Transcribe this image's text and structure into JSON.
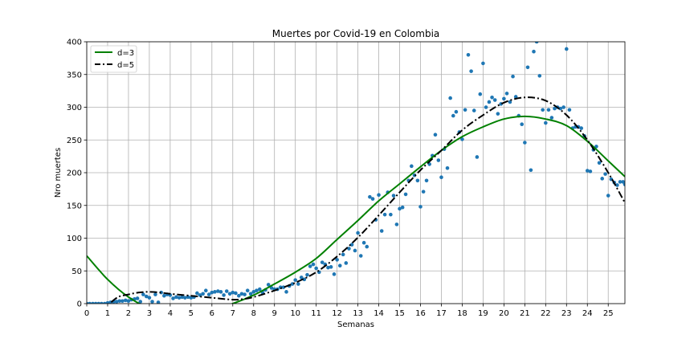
{
  "chart_data": {
    "type": "scatter",
    "title": "Muertes por Covid-19 en Colombia",
    "xlabel": "Semanas",
    "ylabel": "Nro muertes",
    "xlim": [
      0,
      25.8
    ],
    "ylim": [
      0,
      400
    ],
    "xticks": [
      0,
      1,
      2,
      3,
      4,
      5,
      6,
      7,
      8,
      9,
      10,
      11,
      12,
      13,
      14,
      15,
      16,
      17,
      18,
      19,
      20,
      21,
      22,
      23,
      24,
      25
    ],
    "yticks": [
      0,
      50,
      100,
      150,
      200,
      250,
      300,
      350,
      400
    ],
    "grid": true,
    "legend_position": "top-left",
    "scatter": {
      "color": "#1f77b4",
      "points": [
        [
          0.0,
          0
        ],
        [
          0.14,
          0
        ],
        [
          0.29,
          0
        ],
        [
          0.43,
          0
        ],
        [
          0.57,
          0
        ],
        [
          0.71,
          0
        ],
        [
          0.86,
          0
        ],
        [
          1.0,
          1
        ],
        [
          1.14,
          2
        ],
        [
          1.29,
          3
        ],
        [
          1.43,
          3
        ],
        [
          1.57,
          4
        ],
        [
          1.71,
          4
        ],
        [
          1.86,
          5
        ],
        [
          2.0,
          4
        ],
        [
          2.14,
          6
        ],
        [
          2.29,
          7
        ],
        [
          2.43,
          8
        ],
        [
          2.57,
          3
        ],
        [
          2.71,
          14
        ],
        [
          2.86,
          11
        ],
        [
          3.0,
          9
        ],
        [
          3.14,
          3
        ],
        [
          3.29,
          14
        ],
        [
          3.43,
          2
        ],
        [
          3.57,
          17
        ],
        [
          3.71,
          12
        ],
        [
          3.86,
          14
        ],
        [
          4.0,
          13
        ],
        [
          4.14,
          8
        ],
        [
          4.29,
          10
        ],
        [
          4.43,
          9
        ],
        [
          4.57,
          10
        ],
        [
          4.71,
          9
        ],
        [
          4.86,
          10
        ],
        [
          5.0,
          9
        ],
        [
          5.14,
          10
        ],
        [
          5.29,
          16
        ],
        [
          5.43,
          13
        ],
        [
          5.57,
          15
        ],
        [
          5.71,
          20
        ],
        [
          5.86,
          14
        ],
        [
          6.0,
          17
        ],
        [
          6.14,
          18
        ],
        [
          6.29,
          19
        ],
        [
          6.43,
          18
        ],
        [
          6.57,
          13
        ],
        [
          6.71,
          19
        ],
        [
          6.86,
          15
        ],
        [
          7.0,
          17
        ],
        [
          7.14,
          16
        ],
        [
          7.29,
          12
        ],
        [
          7.43,
          15
        ],
        [
          7.57,
          14
        ],
        [
          7.71,
          20
        ],
        [
          7.86,
          15
        ],
        [
          8.0,
          18
        ],
        [
          8.14,
          20
        ],
        [
          8.29,
          22
        ],
        [
          8.43,
          17
        ],
        [
          8.57,
          21
        ],
        [
          8.71,
          29
        ],
        [
          8.86,
          24
        ],
        [
          9.0,
          22
        ],
        [
          9.14,
          22
        ],
        [
          9.29,
          25
        ],
        [
          9.43,
          25
        ],
        [
          9.57,
          18
        ],
        [
          9.71,
          27
        ],
        [
          9.86,
          30
        ],
        [
          10.0,
          36
        ],
        [
          10.14,
          30
        ],
        [
          10.29,
          40
        ],
        [
          10.43,
          37
        ],
        [
          10.57,
          44
        ],
        [
          10.71,
          57
        ],
        [
          10.86,
          60
        ],
        [
          11.0,
          54
        ],
        [
          11.14,
          48
        ],
        [
          11.29,
          63
        ],
        [
          11.43,
          60
        ],
        [
          11.57,
          55
        ],
        [
          11.71,
          56
        ],
        [
          11.86,
          45
        ],
        [
          12.0,
          67
        ],
        [
          12.14,
          58
        ],
        [
          12.29,
          75
        ],
        [
          12.43,
          62
        ],
        [
          12.57,
          84
        ],
        [
          12.71,
          90
        ],
        [
          12.86,
          81
        ],
        [
          13.0,
          108
        ],
        [
          13.14,
          73
        ],
        [
          13.29,
          93
        ],
        [
          13.43,
          87
        ],
        [
          13.57,
          163
        ],
        [
          13.71,
          160
        ],
        [
          13.86,
          128
        ],
        [
          14.0,
          166
        ],
        [
          14.14,
          111
        ],
        [
          14.29,
          136
        ],
        [
          14.43,
          170
        ],
        [
          14.57,
          136
        ],
        [
          14.71,
          165
        ],
        [
          14.86,
          121
        ],
        [
          15.0,
          145
        ],
        [
          15.14,
          147
        ],
        [
          15.29,
          167
        ],
        [
          15.43,
          188
        ],
        [
          15.57,
          210
        ],
        [
          15.71,
          196
        ],
        [
          15.86,
          188
        ],
        [
          16.0,
          148
        ],
        [
          16.14,
          171
        ],
        [
          16.29,
          188
        ],
        [
          16.43,
          213
        ],
        [
          16.57,
          226
        ],
        [
          16.71,
          258
        ],
        [
          16.86,
          219
        ],
        [
          17.0,
          193
        ],
        [
          17.14,
          236
        ],
        [
          17.29,
          207
        ],
        [
          17.43,
          314
        ],
        [
          17.57,
          287
        ],
        [
          17.71,
          293
        ],
        [
          17.86,
          262
        ],
        [
          18.0,
          251
        ],
        [
          18.14,
          296
        ],
        [
          18.29,
          380
        ],
        [
          18.43,
          355
        ],
        [
          18.57,
          295
        ],
        [
          18.71,
          224
        ],
        [
          18.86,
          320
        ],
        [
          19.0,
          367
        ],
        [
          19.14,
          300
        ],
        [
          19.29,
          308
        ],
        [
          19.43,
          315
        ],
        [
          19.57,
          311
        ],
        [
          19.71,
          290
        ],
        [
          19.86,
          305
        ],
        [
          20.0,
          313
        ],
        [
          20.14,
          321
        ],
        [
          20.29,
          308
        ],
        [
          20.43,
          347
        ],
        [
          20.57,
          316
        ],
        [
          20.71,
          287
        ],
        [
          20.86,
          274
        ],
        [
          21.0,
          246
        ],
        [
          21.14,
          361
        ],
        [
          21.29,
          204
        ],
        [
          21.43,
          385
        ],
        [
          21.57,
          400
        ],
        [
          21.71,
          348
        ],
        [
          21.86,
          296
        ],
        [
          22.0,
          276
        ],
        [
          22.14,
          296
        ],
        [
          22.29,
          284
        ],
        [
          22.43,
          298
        ],
        [
          22.57,
          300
        ],
        [
          22.71,
          298
        ],
        [
          22.86,
          300
        ],
        [
          23.0,
          389
        ],
        [
          23.14,
          296
        ],
        [
          23.29,
          268
        ],
        [
          23.43,
          270
        ],
        [
          23.57,
          270
        ],
        [
          23.71,
          268
        ],
        [
          23.86,
          256
        ],
        [
          24.0,
          203
        ],
        [
          24.14,
          202
        ],
        [
          24.29,
          235
        ],
        [
          24.43,
          240
        ],
        [
          24.57,
          215
        ],
        [
          24.71,
          191
        ],
        [
          24.86,
          198
        ],
        [
          25.0,
          165
        ],
        [
          25.14,
          190
        ],
        [
          25.29,
          185
        ],
        [
          25.43,
          181
        ],
        [
          25.57,
          186
        ],
        [
          25.71,
          186
        ],
        [
          25.8,
          182
        ]
      ]
    },
    "series": [
      {
        "name": "d=3",
        "color": "#008000",
        "style": "solid",
        "points": [
          [
            0,
            73
          ],
          [
            1,
            37
          ],
          [
            2,
            10
          ],
          [
            3,
            -7
          ],
          [
            4,
            -15
          ],
          [
            5,
            -16
          ],
          [
            6,
            -9
          ],
          [
            7,
            0
          ],
          [
            8,
            13
          ],
          [
            9,
            30
          ],
          [
            10,
            48
          ],
          [
            11,
            69
          ],
          [
            12,
            98
          ],
          [
            13,
            127
          ],
          [
            14,
            157
          ],
          [
            15,
            183
          ],
          [
            16,
            209
          ],
          [
            17,
            234
          ],
          [
            18,
            255
          ],
          [
            19,
            270
          ],
          [
            20,
            282
          ],
          [
            21,
            286
          ],
          [
            22,
            282
          ],
          [
            23,
            272
          ],
          [
            24,
            248
          ],
          [
            25,
            218
          ],
          [
            25.8,
            194
          ]
        ]
      },
      {
        "name": "d=5",
        "color": "#000000",
        "style": "dashdot",
        "points": [
          [
            0,
            -5
          ],
          [
            0.5,
            -10
          ],
          [
            1,
            -2
          ],
          [
            1.5,
            10
          ],
          [
            2,
            14
          ],
          [
            2.5,
            17
          ],
          [
            3,
            18
          ],
          [
            3.5,
            17
          ],
          [
            4,
            15
          ],
          [
            5,
            12
          ],
          [
            6,
            9
          ],
          [
            7,
            6
          ],
          [
            7.5,
            7
          ],
          [
            8,
            10
          ],
          [
            9,
            20
          ],
          [
            10,
            32
          ],
          [
            11,
            48
          ],
          [
            12,
            72
          ],
          [
            13,
            101
          ],
          [
            14,
            135
          ],
          [
            15,
            170
          ],
          [
            16,
            204
          ],
          [
            17,
            234
          ],
          [
            18,
            265
          ],
          [
            19,
            288
          ],
          [
            20,
            307
          ],
          [
            21,
            315
          ],
          [
            22,
            310
          ],
          [
            23,
            288
          ],
          [
            24,
            250
          ],
          [
            25,
            200
          ],
          [
            25.8,
            154
          ]
        ]
      }
    ]
  }
}
